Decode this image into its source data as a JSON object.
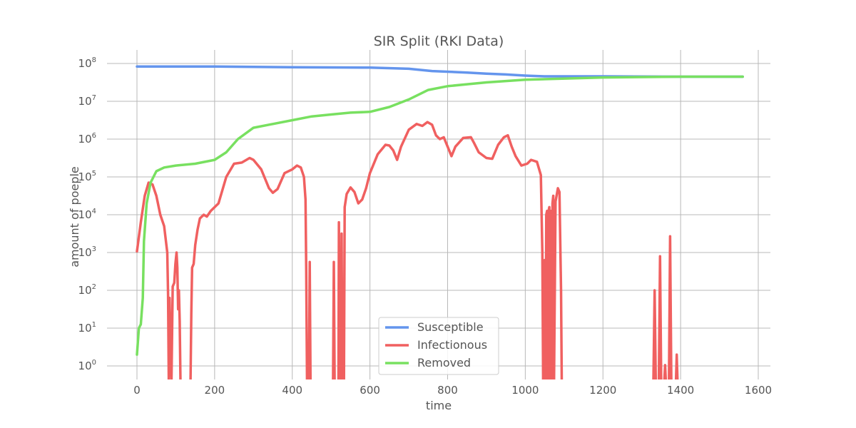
{
  "chart_data": {
    "type": "line",
    "title": "SIR Split (RKI Data)",
    "xlabel": "time",
    "ylabel": "amount of poeple",
    "yscale": "log",
    "xlim": [
      -60,
      1630
    ],
    "ylim_log10": [
      -0.35,
      8.4
    ],
    "grid": true,
    "legend_position": "lower-center",
    "x_ticks": [
      0,
      200,
      400,
      600,
      800,
      1000,
      1200,
      1400,
      1600
    ],
    "x_tick_labels": [
      "0",
      "200",
      "400",
      "600",
      "800",
      "1000",
      "1200",
      "1400",
      "1600"
    ],
    "y_ticks_log10": [
      0,
      1,
      2,
      3,
      4,
      5,
      6,
      7,
      8
    ],
    "y_tick_labels": [
      {
        "base": "10",
        "exp": "0"
      },
      {
        "base": "10",
        "exp": "1"
      },
      {
        "base": "10",
        "exp": "2"
      },
      {
        "base": "10",
        "exp": "3"
      },
      {
        "base": "10",
        "exp": "4"
      },
      {
        "base": "10",
        "exp": "5"
      },
      {
        "base": "10",
        "exp": "6"
      },
      {
        "base": "10",
        "exp": "7"
      },
      {
        "base": "10",
        "exp": "8"
      }
    ],
    "series": [
      {
        "name": "Susceptible",
        "color": "#6495ed",
        "log10_points": [
          [
            0,
            7.92
          ],
          [
            200,
            7.92
          ],
          [
            400,
            7.9
          ],
          [
            600,
            7.89
          ],
          [
            700,
            7.86
          ],
          [
            760,
            7.8
          ],
          [
            850,
            7.76
          ],
          [
            900,
            7.73
          ],
          [
            950,
            7.71
          ],
          [
            1000,
            7.68
          ],
          [
            1050,
            7.66
          ],
          [
            1200,
            7.66
          ],
          [
            1400,
            7.65
          ],
          [
            1560,
            7.65
          ]
        ]
      },
      {
        "name": "Infectionous",
        "color": "#f06060",
        "log10_points": [
          [
            0,
            3.03
          ],
          [
            10,
            3.8
          ],
          [
            20,
            4.5
          ],
          [
            30,
            4.85
          ],
          [
            40,
            4.8
          ],
          [
            50,
            4.5
          ],
          [
            60,
            4.0
          ],
          [
            70,
            3.7
          ],
          [
            78,
            3.0
          ],
          [
            80,
            1.9
          ],
          [
            82,
            -0.4
          ],
          [
            84,
            1.8
          ],
          [
            87,
            0.2
          ],
          [
            89,
            -0.4
          ],
          [
            92,
            2.1
          ],
          [
            96,
            2.2
          ],
          [
            99,
            2.7
          ],
          [
            102,
            3.0
          ],
          [
            104,
            2.6
          ],
          [
            106,
            1.5
          ],
          [
            108,
            2.0
          ],
          [
            110,
            1.2
          ],
          [
            112,
            -0.4
          ],
          [
            138,
            -0.4
          ],
          [
            140,
            1.4
          ],
          [
            142,
            2.6
          ],
          [
            146,
            2.7
          ],
          [
            150,
            3.2
          ],
          [
            156,
            3.6
          ],
          [
            162,
            3.9
          ],
          [
            172,
            4.0
          ],
          [
            180,
            3.95
          ],
          [
            190,
            4.1
          ],
          [
            210,
            4.3
          ],
          [
            230,
            5.0
          ],
          [
            250,
            5.35
          ],
          [
            270,
            5.38
          ],
          [
            290,
            5.5
          ],
          [
            300,
            5.45
          ],
          [
            320,
            5.2
          ],
          [
            340,
            4.7
          ],
          [
            350,
            4.58
          ],
          [
            362,
            4.68
          ],
          [
            380,
            5.1
          ],
          [
            400,
            5.2
          ],
          [
            412,
            5.3
          ],
          [
            422,
            5.25
          ],
          [
            430,
            5.0
          ],
          [
            434,
            4.4
          ],
          [
            436,
            2.5
          ],
          [
            438,
            -0.4
          ],
          [
            443,
            -0.4
          ],
          [
            445,
            2.75
          ],
          [
            447,
            -0.4
          ],
          [
            505,
            -0.4
          ],
          [
            507,
            2.75
          ],
          [
            509,
            -0.4
          ],
          [
            519,
            -0.4
          ],
          [
            520,
            3.8
          ],
          [
            522,
            -0.4
          ],
          [
            525,
            -0.4
          ],
          [
            527,
            3.5
          ],
          [
            529,
            -0.4
          ],
          [
            533,
            -0.4
          ],
          [
            535,
            4.2
          ],
          [
            540,
            4.55
          ],
          [
            550,
            4.72
          ],
          [
            560,
            4.6
          ],
          [
            570,
            4.3
          ],
          [
            580,
            4.4
          ],
          [
            590,
            4.7
          ],
          [
            600,
            5.1
          ],
          [
            620,
            5.6
          ],
          [
            640,
            5.85
          ],
          [
            650,
            5.83
          ],
          [
            660,
            5.7
          ],
          [
            670,
            5.45
          ],
          [
            680,
            5.8
          ],
          [
            700,
            6.25
          ],
          [
            720,
            6.4
          ],
          [
            735,
            6.35
          ],
          [
            748,
            6.45
          ],
          [
            760,
            6.38
          ],
          [
            770,
            6.1
          ],
          [
            780,
            6.0
          ],
          [
            790,
            6.05
          ],
          [
            800,
            5.8
          ],
          [
            810,
            5.55
          ],
          [
            820,
            5.8
          ],
          [
            840,
            6.03
          ],
          [
            860,
            6.05
          ],
          [
            868,
            5.9
          ],
          [
            880,
            5.65
          ],
          [
            900,
            5.5
          ],
          [
            915,
            5.48
          ],
          [
            930,
            5.85
          ],
          [
            945,
            6.05
          ],
          [
            955,
            6.1
          ],
          [
            965,
            5.8
          ],
          [
            975,
            5.55
          ],
          [
            990,
            5.3
          ],
          [
            1005,
            5.35
          ],
          [
            1015,
            5.45
          ],
          [
            1030,
            5.4
          ],
          [
            1040,
            5.05
          ],
          [
            1044,
            3.0
          ],
          [
            1046,
            -0.4
          ],
          [
            1048,
            -0.4
          ],
          [
            1050,
            2.8
          ],
          [
            1052,
            -0.4
          ],
          [
            1054,
            4.0
          ],
          [
            1056,
            4.1
          ],
          [
            1058,
            -0.4
          ],
          [
            1060,
            4.1
          ],
          [
            1062,
            4.2
          ],
          [
            1064,
            -0.4
          ],
          [
            1066,
            4.1
          ],
          [
            1068,
            -0.4
          ],
          [
            1070,
            4.3
          ],
          [
            1072,
            4.5
          ],
          [
            1074,
            -0.4
          ],
          [
            1078,
            4.35
          ],
          [
            1084,
            4.7
          ],
          [
            1088,
            4.6
          ],
          [
            1092,
            2.0
          ],
          [
            1094,
            -0.4
          ],
          [
            1330,
            -0.4
          ],
          [
            1333,
            2.0
          ],
          [
            1336,
            -0.4
          ],
          [
            1344,
            -0.4
          ],
          [
            1347,
            2.9
          ],
          [
            1350,
            -0.4
          ],
          [
            1358,
            -0.4
          ],
          [
            1360,
            0.02
          ],
          [
            1362,
            -0.4
          ],
          [
            1370,
            -0.4
          ],
          [
            1373,
            3.43
          ],
          [
            1376,
            -0.4
          ],
          [
            1388,
            -0.4
          ],
          [
            1390,
            0.3
          ],
          [
            1392,
            -0.4
          ]
        ]
      },
      {
        "name": "Removed",
        "color": "#78e060",
        "log10_points": [
          [
            0,
            0.3
          ],
          [
            5,
            1.0
          ],
          [
            10,
            1.1
          ],
          [
            15,
            1.8
          ],
          [
            18,
            3.3
          ],
          [
            25,
            4.3
          ],
          [
            35,
            4.85
          ],
          [
            50,
            5.15
          ],
          [
            70,
            5.25
          ],
          [
            100,
            5.3
          ],
          [
            150,
            5.35
          ],
          [
            200,
            5.45
          ],
          [
            230,
            5.65
          ],
          [
            260,
            6.0
          ],
          [
            300,
            6.3
          ],
          [
            350,
            6.4
          ],
          [
            400,
            6.5
          ],
          [
            450,
            6.6
          ],
          [
            500,
            6.65
          ],
          [
            550,
            6.7
          ],
          [
            600,
            6.72
          ],
          [
            650,
            6.85
          ],
          [
            700,
            7.05
          ],
          [
            750,
            7.3
          ],
          [
            800,
            7.4
          ],
          [
            850,
            7.45
          ],
          [
            900,
            7.5
          ],
          [
            1000,
            7.57
          ],
          [
            1200,
            7.63
          ],
          [
            1400,
            7.65
          ],
          [
            1560,
            7.65
          ]
        ]
      }
    ]
  }
}
